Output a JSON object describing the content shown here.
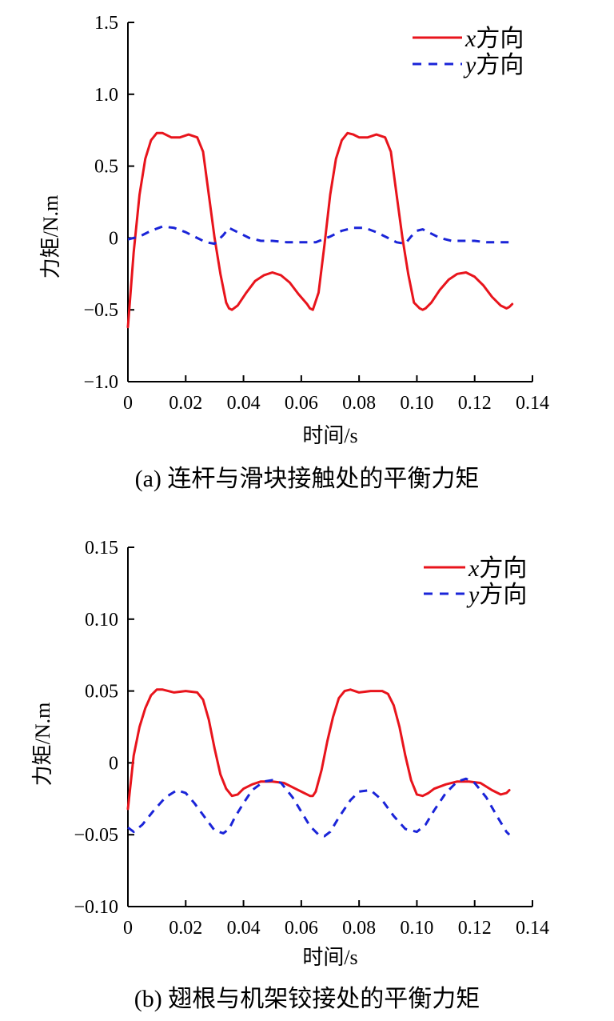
{
  "chart_data": [
    {
      "type": "line",
      "caption": "(a)  连杆与滑块接触处的平衡力矩",
      "xlabel": "时间/s",
      "ylabel": "力矩/N.m",
      "xlim": [
        0,
        0.14
      ],
      "ylim": [
        -1.0,
        1.5
      ],
      "x_ticks": [
        0,
        0.02,
        0.04,
        0.06,
        0.08,
        0.1,
        0.12,
        0.14
      ],
      "x_tick_labels": [
        "0",
        "0.02",
        "0.04",
        "0.06",
        "0.08",
        "0.10",
        "0.12",
        "0.14"
      ],
      "y_ticks": [
        -1.0,
        -0.5,
        0,
        0.5,
        1.0,
        1.5
      ],
      "y_tick_labels": [
        "−1.0",
        "−0.5",
        "0",
        "0.5",
        "1.0",
        "1.5"
      ],
      "grid": false,
      "legend_position": "top-right",
      "series": [
        {
          "name": "x方向",
          "name_var": "x",
          "name_rest": "方向",
          "color": "#e8141c",
          "dash": "solid",
          "x": [
            0,
            0.002,
            0.004,
            0.006,
            0.008,
            0.01,
            0.012,
            0.015,
            0.018,
            0.021,
            0.024,
            0.026,
            0.028,
            0.03,
            0.032,
            0.034,
            0.035,
            0.036,
            0.038,
            0.041,
            0.044,
            0.047,
            0.05,
            0.053,
            0.056,
            0.059,
            0.062,
            0.063,
            0.064,
            0.066,
            0.068,
            0.07,
            0.072,
            0.074,
            0.076,
            0.078,
            0.08,
            0.083,
            0.086,
            0.089,
            0.091,
            0.093,
            0.095,
            0.097,
            0.099,
            0.101,
            0.102,
            0.103,
            0.105,
            0.108,
            0.111,
            0.114,
            0.117,
            0.12,
            0.123,
            0.126,
            0.129,
            0.131,
            0.132,
            0.133
          ],
          "y": [
            -0.62,
            -0.1,
            0.3,
            0.55,
            0.68,
            0.73,
            0.73,
            0.7,
            0.7,
            0.72,
            0.7,
            0.6,
            0.3,
            0.0,
            -0.25,
            -0.45,
            -0.49,
            -0.5,
            -0.47,
            -0.38,
            -0.3,
            -0.26,
            -0.24,
            -0.26,
            -0.31,
            -0.39,
            -0.46,
            -0.49,
            -0.5,
            -0.38,
            -0.05,
            0.3,
            0.55,
            0.68,
            0.73,
            0.72,
            0.7,
            0.7,
            0.72,
            0.7,
            0.6,
            0.3,
            0.0,
            -0.25,
            -0.45,
            -0.49,
            -0.5,
            -0.49,
            -0.45,
            -0.36,
            -0.29,
            -0.25,
            -0.24,
            -0.27,
            -0.33,
            -0.41,
            -0.47,
            -0.49,
            -0.48,
            -0.46
          ]
        },
        {
          "name": "y方向",
          "name_var": "y",
          "name_rest": "方向",
          "color": "#1a24d8",
          "dash": "dashed",
          "x": [
            0,
            0.004,
            0.008,
            0.012,
            0.016,
            0.02,
            0.024,
            0.027,
            0.03,
            0.033,
            0.035,
            0.038,
            0.042,
            0.046,
            0.05,
            0.055,
            0.06,
            0.065,
            0.07,
            0.074,
            0.078,
            0.082,
            0.086,
            0.09,
            0.093,
            0.096,
            0.098,
            0.1,
            0.102,
            0.104,
            0.108,
            0.112,
            0.116,
            0.12,
            0.124,
            0.128,
            0.131,
            0.132
          ],
          "y": [
            -0.01,
            0.01,
            0.05,
            0.08,
            0.07,
            0.04,
            0.0,
            -0.03,
            -0.04,
            0.02,
            0.07,
            0.04,
            0.0,
            -0.02,
            -0.02,
            -0.03,
            -0.03,
            -0.03,
            0.01,
            0.05,
            0.07,
            0.07,
            0.04,
            0.0,
            -0.03,
            -0.04,
            0.01,
            0.05,
            0.06,
            0.04,
            0.0,
            -0.02,
            -0.02,
            -0.02,
            -0.03,
            -0.03,
            -0.03,
            -0.03
          ]
        }
      ]
    },
    {
      "type": "line",
      "caption": "(b)  翅根与机架铰接处的平衡力矩",
      "xlabel": "时间/s",
      "ylabel": "力矩/N.m",
      "xlim": [
        0,
        0.14
      ],
      "ylim": [
        -0.1,
        0.15
      ],
      "x_ticks": [
        0,
        0.02,
        0.04,
        0.06,
        0.08,
        0.1,
        0.12,
        0.14
      ],
      "x_tick_labels": [
        "0",
        "0.02",
        "0.04",
        "0.06",
        "0.08",
        "0.10",
        "0.12",
        "0.14"
      ],
      "y_ticks": [
        -0.1,
        -0.05,
        0,
        0.05,
        0.1,
        0.15
      ],
      "y_tick_labels": [
        "−0.10",
        "−0.05",
        "0",
        "0.05",
        "0.10",
        "0.15"
      ],
      "grid": false,
      "legend_position": "top-right",
      "series": [
        {
          "name": "x方向",
          "name_var": "x",
          "name_rest": "方向",
          "color": "#e8141c",
          "dash": "solid",
          "x": [
            0,
            0.002,
            0.004,
            0.006,
            0.008,
            0.01,
            0.012,
            0.016,
            0.02,
            0.024,
            0.026,
            0.028,
            0.03,
            0.032,
            0.034,
            0.036,
            0.038,
            0.04,
            0.043,
            0.046,
            0.05,
            0.054,
            0.058,
            0.061,
            0.063,
            0.064,
            0.065,
            0.067,
            0.069,
            0.071,
            0.073,
            0.075,
            0.077,
            0.08,
            0.084,
            0.088,
            0.09,
            0.092,
            0.094,
            0.096,
            0.098,
            0.1,
            0.102,
            0.104,
            0.106,
            0.11,
            0.114,
            0.118,
            0.122,
            0.126,
            0.129,
            0.131,
            0.132
          ],
          "y": [
            -0.032,
            0.005,
            0.025,
            0.038,
            0.047,
            0.051,
            0.051,
            0.049,
            0.05,
            0.049,
            0.044,
            0.03,
            0.01,
            -0.008,
            -0.018,
            -0.023,
            -0.022,
            -0.018,
            -0.015,
            -0.013,
            -0.013,
            -0.014,
            -0.018,
            -0.021,
            -0.023,
            -0.023,
            -0.02,
            -0.005,
            0.015,
            0.032,
            0.045,
            0.05,
            0.051,
            0.049,
            0.05,
            0.05,
            0.048,
            0.04,
            0.025,
            0.005,
            -0.012,
            -0.022,
            -0.023,
            -0.021,
            -0.018,
            -0.015,
            -0.013,
            -0.013,
            -0.014,
            -0.019,
            -0.022,
            -0.021,
            -0.019
          ]
        },
        {
          "name": "y方向",
          "name_var": "y",
          "name_rest": "方向",
          "color": "#1a24d8",
          "dash": "dashed",
          "x": [
            0,
            0.002,
            0.005,
            0.009,
            0.013,
            0.017,
            0.02,
            0.023,
            0.027,
            0.03,
            0.033,
            0.035,
            0.037,
            0.04,
            0.043,
            0.047,
            0.05,
            0.053,
            0.057,
            0.06,
            0.063,
            0.066,
            0.068,
            0.07,
            0.073,
            0.077,
            0.08,
            0.084,
            0.088,
            0.092,
            0.096,
            0.1,
            0.103,
            0.106,
            0.11,
            0.114,
            0.117,
            0.12,
            0.124,
            0.128,
            0.131,
            0.132
          ],
          "y": [
            -0.045,
            -0.048,
            -0.043,
            -0.033,
            -0.024,
            -0.019,
            -0.021,
            -0.028,
            -0.039,
            -0.047,
            -0.049,
            -0.046,
            -0.038,
            -0.028,
            -0.019,
            -0.013,
            -0.012,
            -0.014,
            -0.024,
            -0.034,
            -0.044,
            -0.05,
            -0.051,
            -0.048,
            -0.038,
            -0.026,
            -0.02,
            -0.019,
            -0.026,
            -0.037,
            -0.046,
            -0.048,
            -0.043,
            -0.033,
            -0.021,
            -0.013,
            -0.011,
            -0.014,
            -0.024,
            -0.038,
            -0.048,
            -0.05
          ]
        }
      ]
    }
  ]
}
